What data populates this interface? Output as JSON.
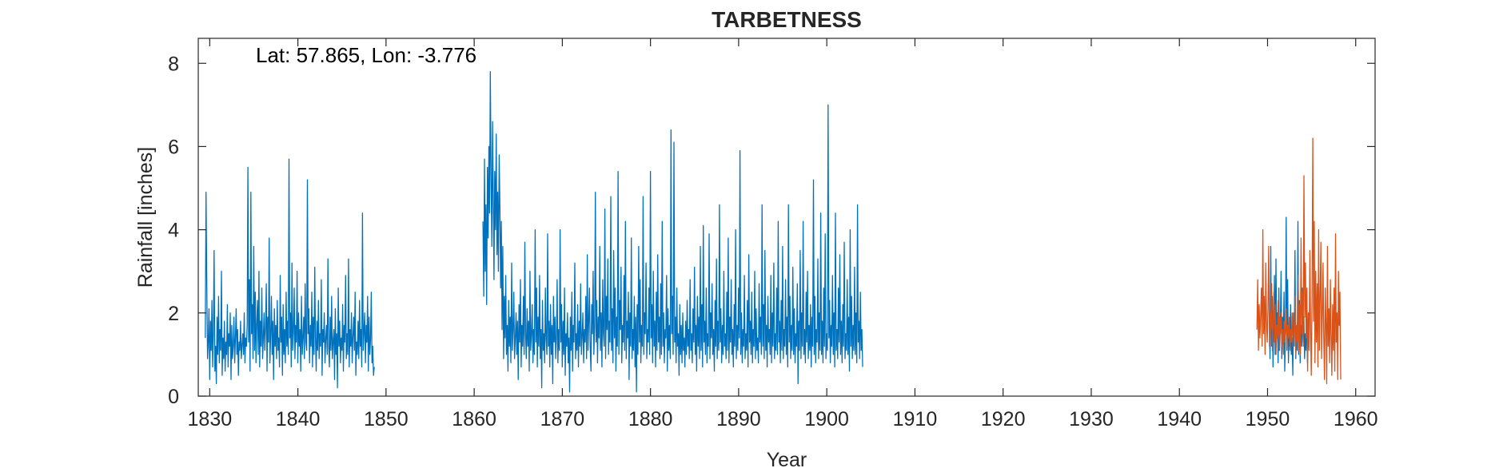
{
  "chart_data": {
    "type": "line",
    "title": "TARBETNESS",
    "xlabel": "Year",
    "ylabel": "Rainfall [inches]",
    "annotation": "Lat: 57.865, Lon: -3.776",
    "xlim": [
      1828.7,
      1962.2
    ],
    "ylim": [
      0,
      8.6
    ],
    "xticks": [
      1830,
      1840,
      1850,
      1860,
      1870,
      1880,
      1890,
      1900,
      1910,
      1920,
      1930,
      1940,
      1950,
      1960
    ],
    "yticks": [
      0,
      2,
      4,
      6,
      8
    ],
    "grid": false,
    "legend": "none",
    "series": [
      {
        "color": "#0072BD",
        "segments": [
          {
            "start": 1829.5,
            "step": 0.0833,
            "values": [
              1.4,
              4.9,
              2.6,
              0.9,
              1.3,
              2.1,
              0.4,
              1.8,
              1.1,
              2.3,
              0.7,
              1.5,
              3.5,
              0.6,
              1.2,
              0.3,
              1.9,
              1.0,
              2.4,
              0.8,
              1.6,
              1.1,
              3.0,
              0.5,
              1.4,
              0.9,
              1.8,
              0.6,
              1.3,
              1.0,
              2.2,
              0.7,
              1.5,
              1.2,
              2.0,
              0.4,
              1.7,
              0.9,
              1.2,
              1.9,
              0.8,
              1.4,
              2.1,
              1.0,
              1.6,
              0.5,
              1.3,
              1.1,
              1.8,
              0.9,
              1.2,
              1.5,
              1.0,
              2.0,
              0.8,
              1.4,
              1.2,
              1.7,
              5.5,
              1.3,
              2.8,
              0.6,
              4.9,
              1.5,
              2.2,
              0.9,
              3.6,
              1.1,
              2.5,
              0.8,
              1.7,
              2.3,
              1.0,
              3.0,
              0.7,
              1.8,
              1.2,
              2.6,
              0.9,
              1.4,
              2.0,
              1.1,
              1.6,
              2.7,
              0.6,
              1.9,
              1.3,
              3.8,
              0.8,
              1.5,
              2.4,
              1.0,
              1.8,
              0.4,
              2.1,
              1.2,
              1.7,
              0.9,
              2.3,
              1.1,
              1.4,
              0.7,
              2.9,
              1.3,
              1.9,
              0.5,
              2.2,
              1.0,
              1.6,
              0.8,
              2.5,
              1.2,
              1.8,
              1.0,
              5.7,
              1.4,
              2.0,
              0.7,
              3.2,
              1.1,
              1.5,
              2.6,
              0.9,
              1.7,
              1.3,
              3.0,
              0.8,
              2.0,
              1.2,
              1.6,
              0.6,
              2.4,
              1.0,
              1.4,
              1.9,
              0.9,
              2.7,
              1.3,
              1.1,
              5.2,
              1.5,
              2.1,
              0.8,
              1.7,
              1.2,
              2.5,
              0.7,
              1.9,
              1.0,
              3.1,
              1.4,
              0.6,
              1.8,
              1.1,
              2.3,
              0.9,
              1.5,
              1.2,
              2.8,
              0.5,
              1.6,
              1.3,
              2.0,
              0.8,
              1.4,
              1.7,
              1.0,
              3.3,
              1.2,
              0.7,
              1.9,
              1.1,
              2.4,
              0.9,
              1.3,
              1.6,
              0.4,
              2.1,
              1.0,
              1.5,
              0.2,
              2.6,
              1.2,
              1.8,
              0.8,
              1.4,
              1.1,
              2.2,
              0.6,
              1.7,
              1.3,
              2.9,
              0.9,
              1.5,
              1.0,
              3.3,
              0.7,
              1.6,
              1.2,
              2.0,
              0.8,
              1.4,
              1.9,
              1.1,
              2.5,
              0.5,
              1.3,
              1.0,
              1.8,
              0.9,
              2.3,
              1.2,
              1.6,
              0.7,
              4.4,
              1.1,
              1.5,
              2.0,
              0.8,
              1.7,
              1.3,
              2.4,
              0.6,
              1.9,
              1.0,
              1.4,
              2.5,
              0.8,
              1.2,
              0.5,
              0.7
            ]
          },
          {
            "start": 1861.0,
            "step": 0.0833,
            "values": [
              4.2,
              2.4,
              5.7,
              3.0,
              4.6,
              2.2,
              5.5,
              3.8,
              6.0,
              4.4,
              7.8,
              5.2,
              3.6,
              6.6,
              4.8,
              2.8,
              5.4,
              4.0,
              6.3,
              3.4,
              4.9,
              3.0,
              5.8,
              4.5,
              2.6,
              4.2,
              1.6,
              3.6,
              0.9,
              2.4,
              1.4,
              2.9,
              1.0,
              1.7,
              0.6,
              2.3,
              1.2,
              1.9,
              0.8,
              3.2,
              1.1,
              1.6,
              2.5,
              0.9,
              1.4,
              2.0,
              1.0,
              1.8,
              0.4,
              2.2,
              1.3,
              2.8,
              0.7,
              1.7,
              1.2,
              2.4,
              1.0,
              3.7,
              1.5,
              0.9,
              2.1,
              1.2,
              1.8,
              0.6,
              3.0,
              1.1,
              1.5,
              2.2,
              0.8,
              1.6,
              1.0,
              4.0,
              1.3,
              2.6,
              0.7,
              1.9,
              1.2,
              2.9,
              0.9,
              1.6,
              0.2,
              2.3,
              1.1,
              1.5,
              0.8,
              2.6,
              1.4,
              1.0,
              3.9,
              1.2,
              1.8,
              0.7,
              2.2,
              1.0,
              1.7,
              0.3,
              2.4,
              1.3,
              1.9,
              0.9,
              1.4,
              2.8,
              0.8,
              1.6,
              1.1,
              4.0,
              1.3,
              2.2,
              0.7,
              1.8,
              1.0,
              2.6,
              0.5,
              1.5,
              1.2,
              2.0,
              0.8,
              1.4,
              0.1,
              1.9,
              1.1,
              2.5,
              0.6,
              1.7,
              1.3,
              3.2,
              0.9,
              1.5,
              1.1,
              2.2,
              0.7,
              1.8,
              1.2,
              2.7,
              1.0,
              1.4,
              2.0,
              0.8,
              1.6,
              1.3,
              2.4,
              0.9,
              3.4,
              1.1,
              1.8,
              2.6,
              1.2,
              0.6,
              2.2,
              1.5,
              3.0,
              1.0,
              1.7,
              4.9,
              1.3,
              2.3,
              0.8,
              1.9,
              1.4,
              3.6,
              1.1,
              2.0,
              0.7,
              2.8,
              1.5,
              1.2,
              4.5,
              0.9,
              2.4,
              1.6,
              3.3,
              1.0,
              1.8,
              1.3,
              4.8,
              1.1,
              2.1,
              0.8,
              3.5,
              1.4,
              2.6,
              0.6,
              1.9,
              1.2,
              5.4,
              1.0,
              2.3,
              1.6,
              3.1,
              0.8,
              1.7,
              1.3,
              2.9,
              1.1,
              4.2,
              0.9,
              1.8,
              1.4,
              2.5,
              0.4,
              2.0,
              1.2,
              3.8,
              0.9,
              1.6,
              1.1,
              2.4,
              0.7,
              1.9,
              0.1,
              2.2,
              1.0,
              3.6,
              1.3,
              2.8,
              0.8,
              1.7,
              1.2,
              4.8,
              1.0,
              2.0,
              1.5,
              3.2,
              0.9,
              1.6,
              1.3,
              2.6,
              1.0,
              5.4,
              1.4,
              2.2,
              0.8,
              3.0,
              1.2,
              1.8,
              0.7,
              2.5,
              1.1,
              3.4,
              1.3,
              1.9,
              0.9,
              2.7,
              1.0,
              4.2,
              1.2,
              2.0,
              0.8,
              1.6,
              1.4,
              2.9,
              0.6,
              2.1,
              1.1,
              1.7,
              0.9,
              6.4,
              1.5,
              2.4,
              1.0,
              6.1,
              1.3,
              1.9,
              0.8,
              2.6,
              1.2,
              1.5,
              0.5,
              2.2,
              1.0,
              1.7,
              0.8,
              2.0,
              1.1,
              1.4,
              0.7,
              1.8,
              1.0,
              2.3,
              1.2,
              1.6,
              0.9,
              2.8,
              1.1,
              1.5,
              0.8,
              2.1,
              1.3,
              3.1,
              1.0,
              1.7,
              0.6,
              2.4,
              1.2,
              1.9,
              0.9,
              3.6,
              1.1,
              2.2,
              0.7,
              4.1,
              1.3,
              1.8,
              1.0,
              2.6,
              0.8,
              1.5,
              1.2,
              3.9,
              0.9,
              2.0,
              1.4,
              2.7,
              1.0,
              1.6,
              0.6,
              2.3,
              1.2,
              3.3,
              0.9,
              1.8,
              1.1,
              4.6,
              1.3,
              2.1,
              0.8,
              1.7,
              1.0,
              3.0,
              1.2,
              1.5,
              0.9,
              2.5,
              1.1,
              3.8,
              0.8,
              1.9,
              1.3,
              2.8,
              1.0,
              1.6,
              0.7,
              2.2,
              1.2,
              4.0,
              0.9,
              1.7,
              1.1,
              2.6,
              1.4,
              5.9,
              1.0,
              2.0,
              0.8,
              1.6,
              1.2,
              2.9,
              0.9,
              1.5,
              1.1,
              2.3,
              0.7,
              3.4,
              1.3,
              1.8,
              1.0,
              2.5,
              0.8,
              1.6,
              1.2,
              3.0,
              0.9,
              2.1,
              1.1,
              1.4,
              0.8,
              2.7,
              1.3,
              1.9,
              1.0,
              4.6,
              1.2,
              2.2,
              0.9,
              3.5,
              1.1,
              1.7,
              0.7,
              2.4,
              1.3,
              1.6,
              1.0,
              2.9,
              0.8,
              2.0,
              1.2,
              3.2,
              0.9,
              1.5,
              1.1,
              2.6,
              1.0,
              4.2,
              1.3,
              1.8,
              0.8,
              2.3,
              1.1,
              3.6,
              0.9,
              1.6,
              1.2,
              2.8,
              1.0,
              1.9,
              0.7,
              4.6,
              1.3,
              2.4,
              0.9,
              1.7,
              1.1,
              3.1,
              1.0,
              2.1,
              0.8,
              1.5,
              1.2,
              2.7,
              0.3,
              1.8,
              1.1,
              3.5,
              0.9,
              2.0,
              1.2,
              4.2,
              1.0,
              1.6,
              0.8,
              2.5,
              1.3,
              3.0,
              0.9,
              1.7,
              1.1,
              2.2,
              0.7,
              1.9,
              1.2,
              5.2,
              1.0,
              2.4,
              0.8,
              1.6,
              1.3,
              3.3,
              0.9,
              2.0,
              1.1,
              4.4,
              1.0,
              1.8,
              0.8,
              2.6,
              1.2,
              3.9,
              0.9,
              1.5,
              1.1,
              7.0,
              1.4,
              2.3,
              0.8,
              1.7,
              1.2,
              2.9,
              1.0,
              2.0,
              0.7,
              4.4,
              1.1,
              1.6,
              0.9,
              2.6,
              1.3,
              3.4,
              1.0,
              1.8,
              0.8,
              2.2,
              1.2,
              3.7,
              0.9,
              1.5,
              1.1,
              2.8,
              1.0,
              1.9,
              0.6,
              4.0,
              1.2,
              2.4,
              0.9,
              1.7,
              1.1,
              3.1,
              1.0,
              2.0,
              0.8,
              4.6,
              1.3,
              1.8,
              0.9,
              2.5,
              1.1,
              1.6,
              0.7
            ]
          },
          {
            "start": 1950.2,
            "step": 0.0833,
            "values": [
              1.8,
              0.9,
              3.6,
              1.2,
              2.4,
              0.7,
              1.6,
              2.9,
              1.0,
              3.3,
              1.4,
              2.0,
              0.8,
              2.6,
              1.1,
              1.7,
              3.0,
              0.9,
              1.9,
              1.3,
              2.5,
              0.6,
              1.5,
              4.3,
              1.1,
              2.8,
              0.8,
              1.6,
              1.2,
              2.2,
              1.0,
              1.4,
              0.5,
              2.0,
              1.2,
              3.5,
              0.9,
              1.6,
              1.1,
              4.2,
              1.0,
              2.3,
              0.8,
              1.7,
              1.2,
              2.6,
              1.3,
              1.9,
              0.9,
              1.5,
              1.1,
              2.1,
              0.8,
              1.4
            ]
          }
        ]
      },
      {
        "color": "#D95319",
        "segments": [
          {
            "start": 1948.8,
            "step": 0.0833,
            "values": [
              1.6,
              2.8,
              1.1,
              2.2,
              1.4,
              1.9,
              2.6,
              1.2,
              4.0,
              1.5,
              2.4,
              1.0,
              3.2,
              1.8,
              1.3,
              2.1,
              3.6,
              1.2,
              2.0,
              1.6,
              2.7,
              1.1,
              1.8,
              2.5,
              1.3,
              2.2,
              1.0,
              1.7,
              1.4,
              2.3,
              1.1,
              1.9,
              1.5,
              2.0,
              1.2,
              1.6,
              1.0,
              1.8,
              1.3,
              1.5,
              2.1,
              1.2,
              1.7,
              1.4,
              1.9,
              1.1,
              1.6,
              1.3,
              2.0,
              1.2,
              1.5,
              1.8,
              2.4,
              1.0,
              1.7,
              1.3,
              2.9,
              1.1,
              2.2,
              1.0,
              3.8,
              1.5,
              2.5,
              1.2,
              5.3,
              1.9,
              3.2,
              1.4,
              2.6,
              0.6,
              2.0,
              1.1,
              3.5,
              1.6,
              0.5,
              2.3,
              6.2,
              1.8,
              4.2,
              0.8,
              3.0,
              1.3,
              2.7,
              0.7,
              4.0,
              1.1,
              2.3,
              3.7,
              0.9,
              1.9,
              3.2,
              1.4,
              0.4,
              2.6,
              1.7,
              0.3,
              3.6,
              1.2,
              2.1,
              0.8,
              2.8,
              1.5,
              0.5,
              2.2,
              1.1,
              2.6,
              0.6,
              3.9,
              1.3,
              2.0,
              0.4,
              3.0,
              1.7,
              2.5,
              0.4
            ]
          }
        ]
      }
    ]
  }
}
